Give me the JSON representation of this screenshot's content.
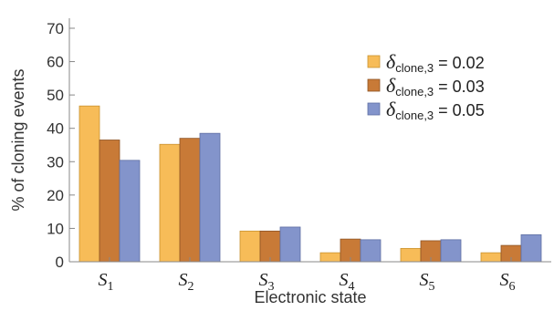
{
  "chart_data": {
    "type": "bar",
    "categories": [
      "S1",
      "S2",
      "S3",
      "S4",
      "S5",
      "S6"
    ],
    "category_display": [
      {
        "main": "S",
        "sub": "1"
      },
      {
        "main": "S",
        "sub": "2"
      },
      {
        "main": "S",
        "sub": "3"
      },
      {
        "main": "S",
        "sub": "4"
      },
      {
        "main": "S",
        "sub": "5"
      },
      {
        "main": "S",
        "sub": "6"
      }
    ],
    "series": [
      {
        "name": "δclone,3 = 0.02",
        "symbol": "δ",
        "sub": "clone,3",
        "rest": " = 0.02",
        "color": "#F7BC58",
        "stroke": "#C9922F",
        "values": [
          46.7,
          35.2,
          9.2,
          2.7,
          4.0,
          2.7
        ]
      },
      {
        "name": "δclone,3 = 0.03",
        "symbol": "δ",
        "sub": "clone,3",
        "rest": " = 0.03",
        "color": "#C87A37",
        "stroke": "#8E5324",
        "values": [
          36.5,
          37.0,
          9.2,
          6.8,
          6.3,
          4.9
        ]
      },
      {
        "name": "δclone,3 = 0.05",
        "symbol": "δ",
        "sub": "clone,3",
        "rest": " = 0.05",
        "color": "#8394CB",
        "stroke": "#5F6FA3",
        "values": [
          30.4,
          38.5,
          10.4,
          6.6,
          6.6,
          8.1
        ]
      }
    ],
    "xlabel": "Electronic state",
    "ylabel": "% of cloning events",
    "ylim": [
      0,
      73
    ],
    "yticks": [
      0,
      10,
      20,
      30,
      40,
      50,
      60,
      70
    ],
    "grid": false,
    "legend_position": "top-right"
  }
}
